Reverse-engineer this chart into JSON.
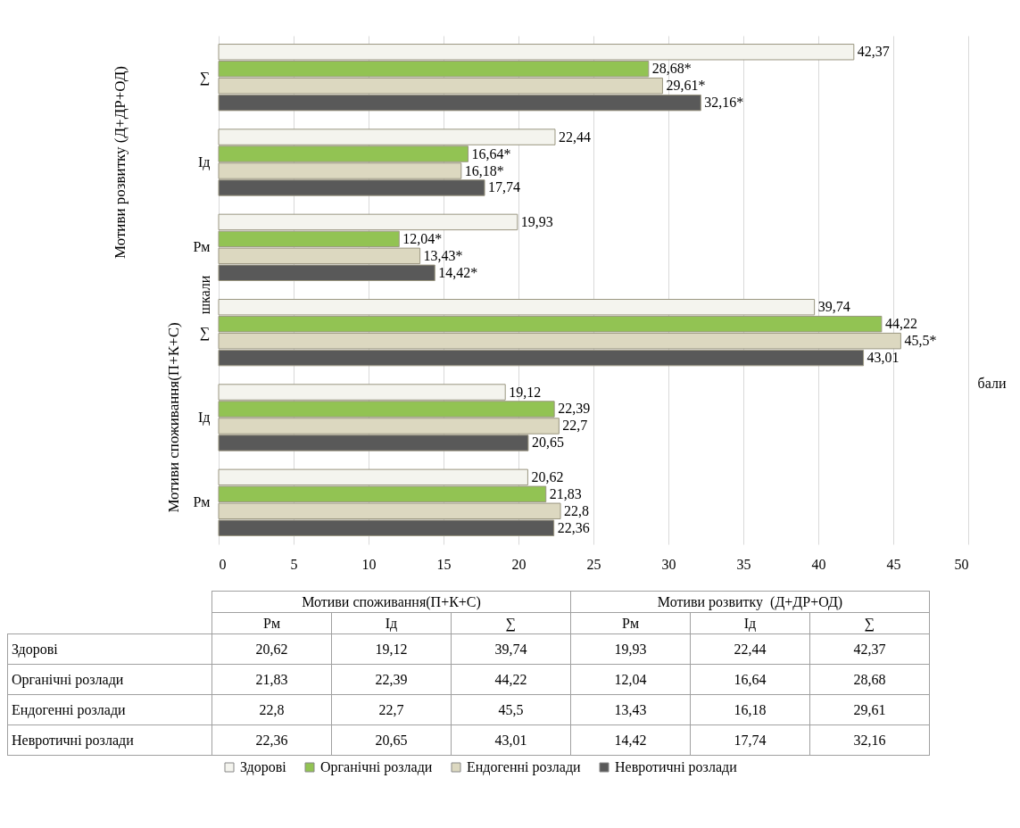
{
  "chart_data": [
    {
      "type": "bar",
      "orientation": "horizontal",
      "categories": [
        "∑",
        "Ід",
        "Рм",
        "∑",
        "Ід",
        "Рм"
      ],
      "series": [
        {
          "name": "Здорові",
          "color": "#f4f4ee",
          "values": [
            42.37,
            22.44,
            19.93,
            39.74,
            19.12,
            20.62
          ],
          "value_labels": [
            "42,37",
            "22,44",
            "19,93",
            "39,74",
            "19,12",
            "20,62"
          ]
        },
        {
          "name": "Органічні розлади",
          "color": "#92c353",
          "values": [
            28.68,
            16.64,
            12.04,
            44.22,
            22.39,
            21.83
          ],
          "value_labels": [
            "28,68*",
            "16,64*",
            "12,04*",
            "44,22",
            "22,39",
            "21,83"
          ]
        },
        {
          "name": "Ендогенні розлади",
          "color": "#dcd8c0",
          "values": [
            29.61,
            16.18,
            13.43,
            45.5,
            22.7,
            22.8
          ],
          "value_labels": [
            "29,61*",
            "16,18*",
            "13,43*",
            "45,5*",
            "22,7",
            "22,8"
          ]
        },
        {
          "name": "Невротичні розлади",
          "color": "#595959",
          "values": [
            32.16,
            17.74,
            14.42,
            43.01,
            20.65,
            22.36
          ],
          "value_labels": [
            "32,16*",
            "17,74",
            "14,42*",
            "43,01",
            "20,65",
            "22,36"
          ]
        }
      ],
      "xlim": [
        0,
        50
      ],
      "xticks": [
        0,
        5,
        10,
        15,
        20,
        25,
        30,
        35,
        40,
        45,
        50
      ],
      "xlabel": "бали",
      "ylabel": "шкали",
      "grid": "x",
      "legend": "bottom",
      "annotations": [
        "Мотиви розвитку (Д+ДР+ОД)",
        "Мотиви споживання(П+К+С)"
      ]
    },
    {
      "type": "other",
      "categories": [
        "Рм",
        "Ід",
        "∑",
        "Рм",
        "Ід",
        "∑"
      ],
      "series": [
        {
          "name": "Здорові",
          "values": [
            20.62,
            19.12,
            39.74,
            19.93,
            22.44,
            42.37
          ],
          "value_labels": [
            "20,62",
            "19,12",
            "39,74",
            "19,93",
            "22,44",
            "42,37"
          ]
        },
        {
          "name": "Органічні розлади",
          "values": [
            21.83,
            22.39,
            44.22,
            12.04,
            16.64,
            28.68
          ],
          "value_labels": [
            "21,83",
            "22,39",
            "44,22",
            "12,04",
            "16,64",
            "28,68"
          ]
        },
        {
          "name": "Ендогенні розлади",
          "values": [
            22.8,
            22.7,
            45.5,
            13.43,
            16.18,
            29.61
          ],
          "value_labels": [
            "22,8",
            "22,7",
            "45,5",
            "13,43",
            "16,18",
            "29,61"
          ]
        },
        {
          "name": "Невротичні розлади",
          "values": [
            22.36,
            20.65,
            43.01,
            14.42,
            17.74,
            32.16
          ],
          "value_labels": [
            "22,36",
            "20,65",
            "43,01",
            "14,42",
            "17,74",
            "32,16"
          ]
        }
      ],
      "annotations": [
        "Мотиви споживання(П+К+С)",
        "Мотиви розвитку  (Д+ДР+ОД)"
      ]
    }
  ]
}
